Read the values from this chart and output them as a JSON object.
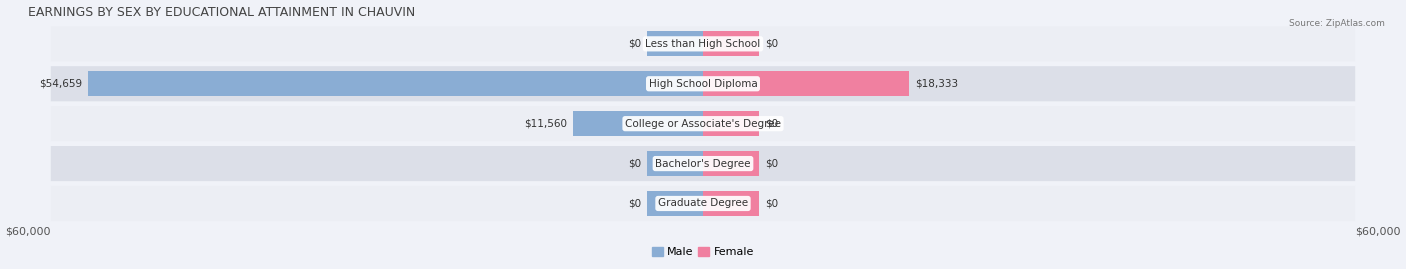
{
  "title": "EARNINGS BY SEX BY EDUCATIONAL ATTAINMENT IN CHAUVIN",
  "source": "Source: ZipAtlas.com",
  "categories": [
    "Less than High School",
    "High School Diploma",
    "College or Associate's Degree",
    "Bachelor's Degree",
    "Graduate Degree"
  ],
  "male_values": [
    0,
    54659,
    11560,
    0,
    0
  ],
  "female_values": [
    0,
    18333,
    0,
    0,
    0
  ],
  "male_color": "#8aadd4",
  "female_color": "#f080a0",
  "male_label": "Male",
  "female_label": "Female",
  "x_min": -60000,
  "x_max": 60000,
  "x_tick_labels": [
    "$60,000",
    "$60,000"
  ],
  "bar_height": 0.62,
  "row_bg_light": "#eceef4",
  "row_bg_dark": "#dcdfe8",
  "background_color": "#f0f2f8",
  "title_fontsize": 9,
  "tick_fontsize": 8,
  "label_fontsize": 7.5,
  "category_fontsize": 7.5,
  "stub_size": 5000
}
